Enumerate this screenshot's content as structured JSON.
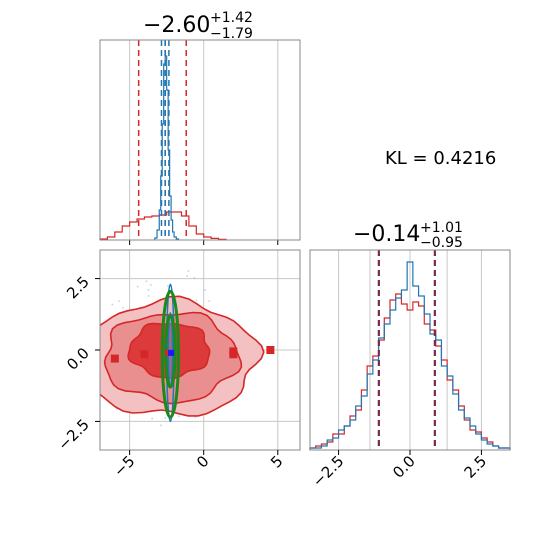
{
  "chart_data": {
    "type": "corner",
    "annotation": "KL = 0.4216",
    "colors": {
      "blue": "#1f77b4",
      "red": "#d62728",
      "green": "#1a8a1a",
      "grid": "#c8c8c8",
      "axis": "#888888"
    },
    "panels": [
      {
        "id": "x-marginal",
        "type": "histogram",
        "title": {
          "main": "−2.60",
          "sup": "+1.42",
          "sub": "−1.79"
        },
        "xlim": [
          -7,
          6.5
        ],
        "ylim": [
          0,
          1
        ],
        "quantiles": {
          "red": [
            -4.39,
            -2.6,
            -1.18
          ],
          "blue": [
            -2.85,
            -2.6,
            -2.35
          ]
        },
        "series": [
          {
            "name": "",
            "color": "red",
            "edges": [
              -7.0,
              -6.5,
              -6.0,
              -5.5,
              -5.0,
              -4.5,
              -4.0,
              -3.5,
              -3.0,
              -2.5,
              -2.0,
              -1.5,
              -1.0,
              -0.5,
              0.0,
              0.5,
              1.0,
              1.5
            ],
            "heights": [
              0.005,
              0.015,
              0.04,
              0.07,
              0.09,
              0.105,
              0.115,
              0.12,
              0.125,
              0.14,
              0.14,
              0.12,
              0.07,
              0.03,
              0.015,
              0.008,
              0.003
            ]
          },
          {
            "name": "",
            "color": "blue",
            "edges": [
              -3.3,
              -3.15,
              -3.0,
              -2.9,
              -2.8,
              -2.7,
              -2.6,
              -2.5,
              -2.4,
              -2.3,
              -2.2,
              -2.1,
              -2.0,
              -1.85,
              -1.7
            ],
            "heights": [
              0.01,
              0.05,
              0.15,
              0.32,
              0.58,
              0.88,
              0.92,
              0.75,
              0.45,
              0.22,
              0.1,
              0.04,
              0.015,
              0.005
            ]
          }
        ],
        "xticks": [
          -5,
          0,
          5
        ],
        "show_tick_labels": false
      },
      {
        "id": "joint",
        "type": "2d-density",
        "xlim": [
          -7,
          6.5
        ],
        "ylim": [
          -3.5,
          3.5
        ],
        "xticks": [
          -5,
          0,
          5
        ],
        "xtick_labels": [
          "−5",
          "0",
          "5"
        ],
        "yticks": [
          -2.5,
          0.0,
          2.5
        ],
        "ytick_labels": [
          "−2.5",
          "0.0",
          "2.5"
        ],
        "red_contours": [
          {
            "level": "outer",
            "cx": -2.3,
            "cy": -0.3,
            "rx": 5.9,
            "ry": 2.0
          },
          {
            "level": "middle",
            "cx": -2.2,
            "cy": -0.25,
            "rx": 4.5,
            "ry": 1.55
          },
          {
            "level": "inner",
            "cx": -2.3,
            "cy": 0.0,
            "rx": 2.7,
            "ry": 0.95
          }
        ],
        "blue_contours": [
          {
            "cx": -2.25,
            "cy": -0.1,
            "rx": 0.25,
            "ry": 2.4
          },
          {
            "cx": -2.25,
            "cy": 0.0,
            "rx": 0.15,
            "ry": 1.3
          }
        ],
        "green_contours": [
          {
            "cx": -2.25,
            "cy": -0.15,
            "rx": 0.55,
            "ry": 2.2
          },
          {
            "cx": -2.25,
            "cy": -0.05,
            "rx": 0.32,
            "ry": 1.25
          }
        ],
        "red_outlier_points": [
          [
            -6.0,
            -0.3
          ],
          [
            -4.0,
            -0.15
          ],
          [
            2.0,
            -0.05
          ],
          [
            2.0,
            -0.15
          ],
          [
            4.5,
            0.0
          ]
        ],
        "red_center": [
          -2.4,
          -0.1
        ],
        "blue_center": [
          -2.2,
          -0.1
        ]
      },
      {
        "id": "y-marginal",
        "type": "histogram",
        "title": {
          "main": "−0.14",
          "sup": "+1.01",
          "sub": "−0.95"
        },
        "xlim": [
          -3.5,
          3.5
        ],
        "ylim": [
          0,
          1
        ],
        "quantiles": {
          "red": [
            -1.09,
            -0.14,
            0.87
          ],
          "blue": [
            -1.09,
            -0.14,
            0.87
          ]
        },
        "series": [
          {
            "name": "",
            "color": "red",
            "edges": [
              -3.5,
              -3.3,
              -3.1,
              -2.9,
              -2.7,
              -2.5,
              -2.3,
              -2.1,
              -1.9,
              -1.7,
              -1.5,
              -1.3,
              -1.1,
              -0.9,
              -0.7,
              -0.5,
              -0.3,
              -0.1,
              0.1,
              0.3,
              0.5,
              0.7,
              0.9,
              1.1,
              1.3,
              1.5,
              1.7,
              1.9,
              2.1,
              2.3,
              2.5,
              2.7,
              2.9,
              3.1,
              3.3,
              3.5
            ],
            "heights": [
              0.01,
              0.02,
              0.03,
              0.04,
              0.08,
              0.08,
              0.12,
              0.17,
              0.2,
              0.3,
              0.42,
              0.47,
              0.55,
              0.66,
              0.75,
              0.78,
              0.73,
              0.7,
              0.74,
              0.72,
              0.63,
              0.6,
              0.52,
              0.45,
              0.35,
              0.3,
              0.22,
              0.15,
              0.1,
              0.09,
              0.06,
              0.04,
              0.02,
              0.01,
              0.01
            ]
          },
          {
            "name": "",
            "color": "blue",
            "edges": [
              -3.5,
              -3.3,
              -3.1,
              -2.9,
              -2.7,
              -2.5,
              -2.3,
              -2.1,
              -1.9,
              -1.7,
              -1.5,
              -1.3,
              -1.1,
              -0.9,
              -0.7,
              -0.5,
              -0.3,
              -0.1,
              0.1,
              0.3,
              0.5,
              0.7,
              0.9,
              1.1,
              1.3,
              1.5,
              1.7,
              1.9,
              2.1,
              2.3,
              2.5,
              2.7,
              2.9,
              3.1,
              3.3,
              3.5
            ],
            "heights": [
              0.01,
              0.01,
              0.02,
              0.05,
              0.06,
              0.1,
              0.12,
              0.15,
              0.22,
              0.27,
              0.38,
              0.45,
              0.56,
              0.63,
              0.7,
              0.76,
              0.8,
              0.94,
              0.82,
              0.77,
              0.68,
              0.58,
              0.55,
              0.42,
              0.37,
              0.28,
              0.2,
              0.16,
              0.12,
              0.08,
              0.05,
              0.03,
              0.02,
              0.01,
              0.01
            ]
          }
        ],
        "xticks": [
          -2.5,
          0.0,
          2.5
        ],
        "xtick_labels": [
          "−2.5",
          "0.0",
          "2.5"
        ]
      }
    ]
  }
}
